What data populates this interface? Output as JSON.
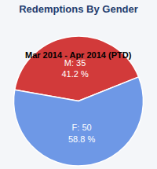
{
  "chart_data": {
    "type": "pie",
    "title": "Redemptions By Gender",
    "subtitle": "Mar 2014 - Apr 2014 (PTD)",
    "categories": [
      "M",
      "F"
    ],
    "values": [
      35,
      50
    ],
    "value_labels": [
      "M: 35\n41.2 %",
      "F: 50\n58.8 %"
    ],
    "colors": [
      "#d23a3a",
      "#6e98e6"
    ],
    "data_labels": true
  }
}
